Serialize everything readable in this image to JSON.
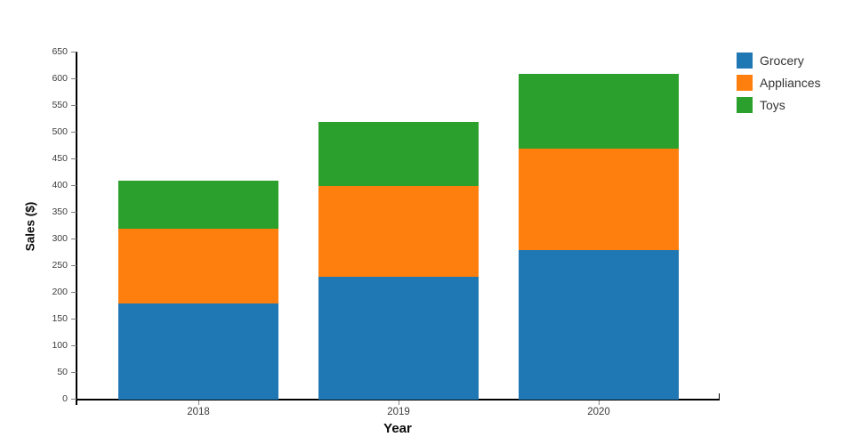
{
  "chart_data": {
    "type": "bar",
    "stacked": true,
    "title": "",
    "xlabel": "Year",
    "ylabel": "Sales ($)",
    "categories": [
      "2018",
      "2019",
      "2020"
    ],
    "series": [
      {
        "name": "Grocery",
        "color": "#1f77b4",
        "values": [
          180,
          230,
          280
        ]
      },
      {
        "name": "Appliances",
        "color": "#ff7f0e",
        "values": [
          140,
          170,
          190
        ]
      },
      {
        "name": "Toys",
        "color": "#2ca02c",
        "values": [
          90,
          120,
          140
        ]
      }
    ],
    "stack_totals": [
      410,
      520,
      610
    ],
    "ylim": [
      0,
      650
    ],
    "ytick_step": 50,
    "ytick_labels": [
      "0",
      "50",
      "100",
      "150",
      "200",
      "250",
      "300",
      "350",
      "400",
      "450",
      "500",
      "550",
      "600",
      "650"
    ],
    "grid": false,
    "legend_position": "top-right",
    "legend_entries": [
      "Grocery",
      "Appliances",
      "Toys"
    ]
  },
  "style_colors": {
    "axis_spine": "#000000",
    "tick_mark": "#8a8a8a",
    "tick_label": "#3b3b3b",
    "background": "#ffffff"
  }
}
